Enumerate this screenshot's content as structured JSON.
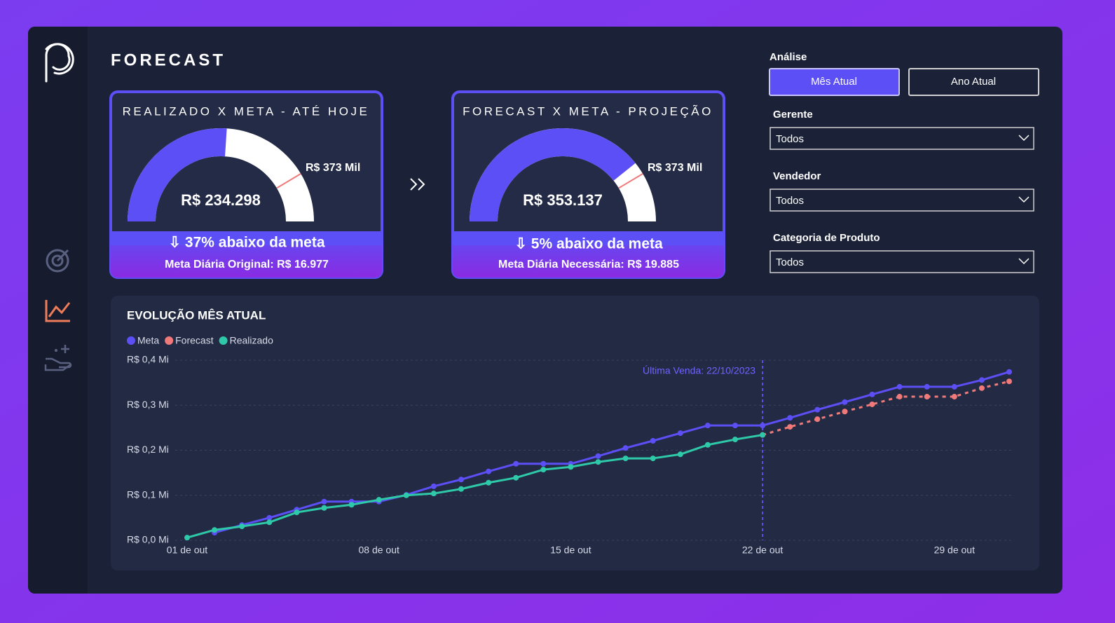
{
  "header": {
    "title": "FORECAST"
  },
  "gauges": [
    {
      "title": "REALIZADO X META - ATÉ HOJE",
      "value": 234298,
      "value_label": "R$ 234.298",
      "target": 373000,
      "target_label": "R$ 373 Mil",
      "range": [
        0,
        450000
      ],
      "status": "⇩ 37% abaixo da meta",
      "note": "Meta Diária Original: R$ 16.977"
    },
    {
      "title": "FORECAST X META - PROJEÇÃO",
      "value": 353137,
      "value_label": "R$ 353.137",
      "target": 373000,
      "target_label": "R$ 373 Mil",
      "range": [
        0,
        450000
      ],
      "status": "⇩ 5% abaixo da meta",
      "note": "Meta Diária Necessária: R$ 19.885"
    }
  ],
  "filters": {
    "analysis_label": "Análise",
    "buttons": [
      "Mês Atual",
      "Ano Atual"
    ],
    "active": 0,
    "dropdowns": [
      {
        "label": "Gerente",
        "value": "Todos"
      },
      {
        "label": "Vendedor",
        "value": "Todos"
      },
      {
        "label": "Categoria de Produto",
        "value": "Todos"
      }
    ]
  },
  "chart_data": {
    "type": "line",
    "title": "EVOLUÇÃO MÊS ATUAL",
    "categories": [
      "01 de out",
      null,
      null,
      null,
      null,
      null,
      null,
      "08 de out",
      null,
      null,
      null,
      null,
      null,
      null,
      "15 de out",
      null,
      null,
      null,
      null,
      null,
      null,
      "22 de out",
      null,
      null,
      null,
      null,
      null,
      null,
      "29 de out",
      null,
      null
    ],
    "series": [
      {
        "name": "Meta",
        "color": "#5b4ff5",
        "style": "solid",
        "values": [
          null,
          0.017,
          0.034,
          0.05,
          0.068,
          0.086,
          0.086,
          0.086,
          0.101,
          0.12,
          0.135,
          0.153,
          0.17,
          0.17,
          0.17,
          0.187,
          0.205,
          0.221,
          0.238,
          0.255,
          0.255,
          0.255,
          0.272,
          0.29,
          0.307,
          0.324,
          0.341,
          0.341,
          0.341,
          0.356,
          0.374
        ]
      },
      {
        "name": "Forecast",
        "color": "#f07a7a",
        "style": "dashed",
        "values": [
          null,
          null,
          null,
          null,
          null,
          null,
          null,
          null,
          null,
          null,
          null,
          null,
          null,
          null,
          null,
          null,
          null,
          null,
          null,
          null,
          null,
          0.234,
          0.252,
          0.269,
          0.286,
          0.302,
          0.319,
          0.319,
          0.319,
          0.338,
          0.353
        ]
      },
      {
        "name": "Realizado",
        "color": "#2ec9a8",
        "style": "solid",
        "values": [
          0.006,
          0.023,
          0.031,
          0.04,
          0.062,
          0.072,
          0.079,
          0.09,
          0.1,
          0.104,
          0.114,
          0.128,
          0.139,
          0.157,
          0.163,
          0.174,
          0.182,
          0.182,
          0.191,
          0.212,
          0.224,
          0.234,
          null,
          null,
          null,
          null,
          null,
          null,
          null,
          null,
          null
        ]
      }
    ],
    "ylim": [
      0,
      0.4
    ],
    "yticks": [
      {
        "value": 0,
        "label": "R$ 0,0 Mi"
      },
      {
        "value": 0.1,
        "label": "R$ 0,1 Mi"
      },
      {
        "value": 0.2,
        "label": "R$ 0,2 Mi"
      },
      {
        "value": 0.3,
        "label": "R$ 0,3 Mi"
      },
      {
        "value": 0.4,
        "label": "R$ 0,4 Mi"
      }
    ],
    "grid": true,
    "legend": "top-left",
    "annotation": {
      "text": "Última Venda: 22/10/2023",
      "at": "22 de out"
    }
  }
}
